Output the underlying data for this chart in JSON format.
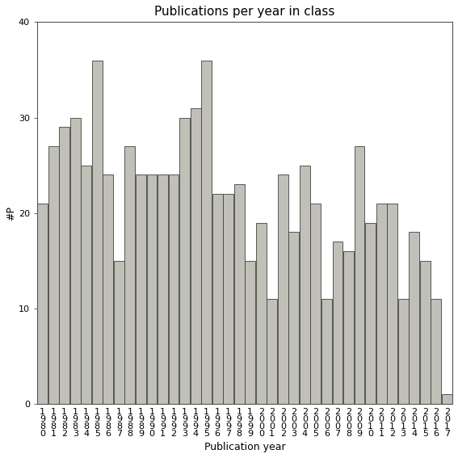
{
  "title": "Publications per year in class",
  "xlabel": "Publication year",
  "ylabel": "#P",
  "years": [
    1980,
    1981,
    1982,
    1983,
    1984,
    1985,
    1986,
    1987,
    1988,
    1989,
    1990,
    1991,
    1992,
    1993,
    1994,
    1995,
    1996,
    1997,
    1998,
    1999,
    2000,
    2001,
    2002,
    2003,
    2004,
    2005,
    2006,
    2007,
    2008,
    2009,
    2010,
    2011,
    2012,
    2013,
    2014,
    2015,
    2016,
    2017
  ],
  "values": [
    21,
    27,
    29,
    30,
    25,
    36,
    24,
    15,
    27,
    24,
    24,
    24,
    24,
    30,
    31,
    36,
    22,
    22,
    23,
    15,
    19,
    11,
    24,
    18,
    25,
    21,
    11,
    17,
    16,
    27,
    19,
    21,
    21,
    11,
    18,
    15,
    11,
    1
  ],
  "bar_color": "#c0c0b8",
  "bar_edge_color": "#404040",
  "ylim": [
    0,
    40
  ],
  "yticks": [
    0,
    10,
    20,
    30,
    40
  ],
  "title_fontsize": 11,
  "label_fontsize": 9,
  "tick_fontsize": 8,
  "background_color": "#ffffff"
}
